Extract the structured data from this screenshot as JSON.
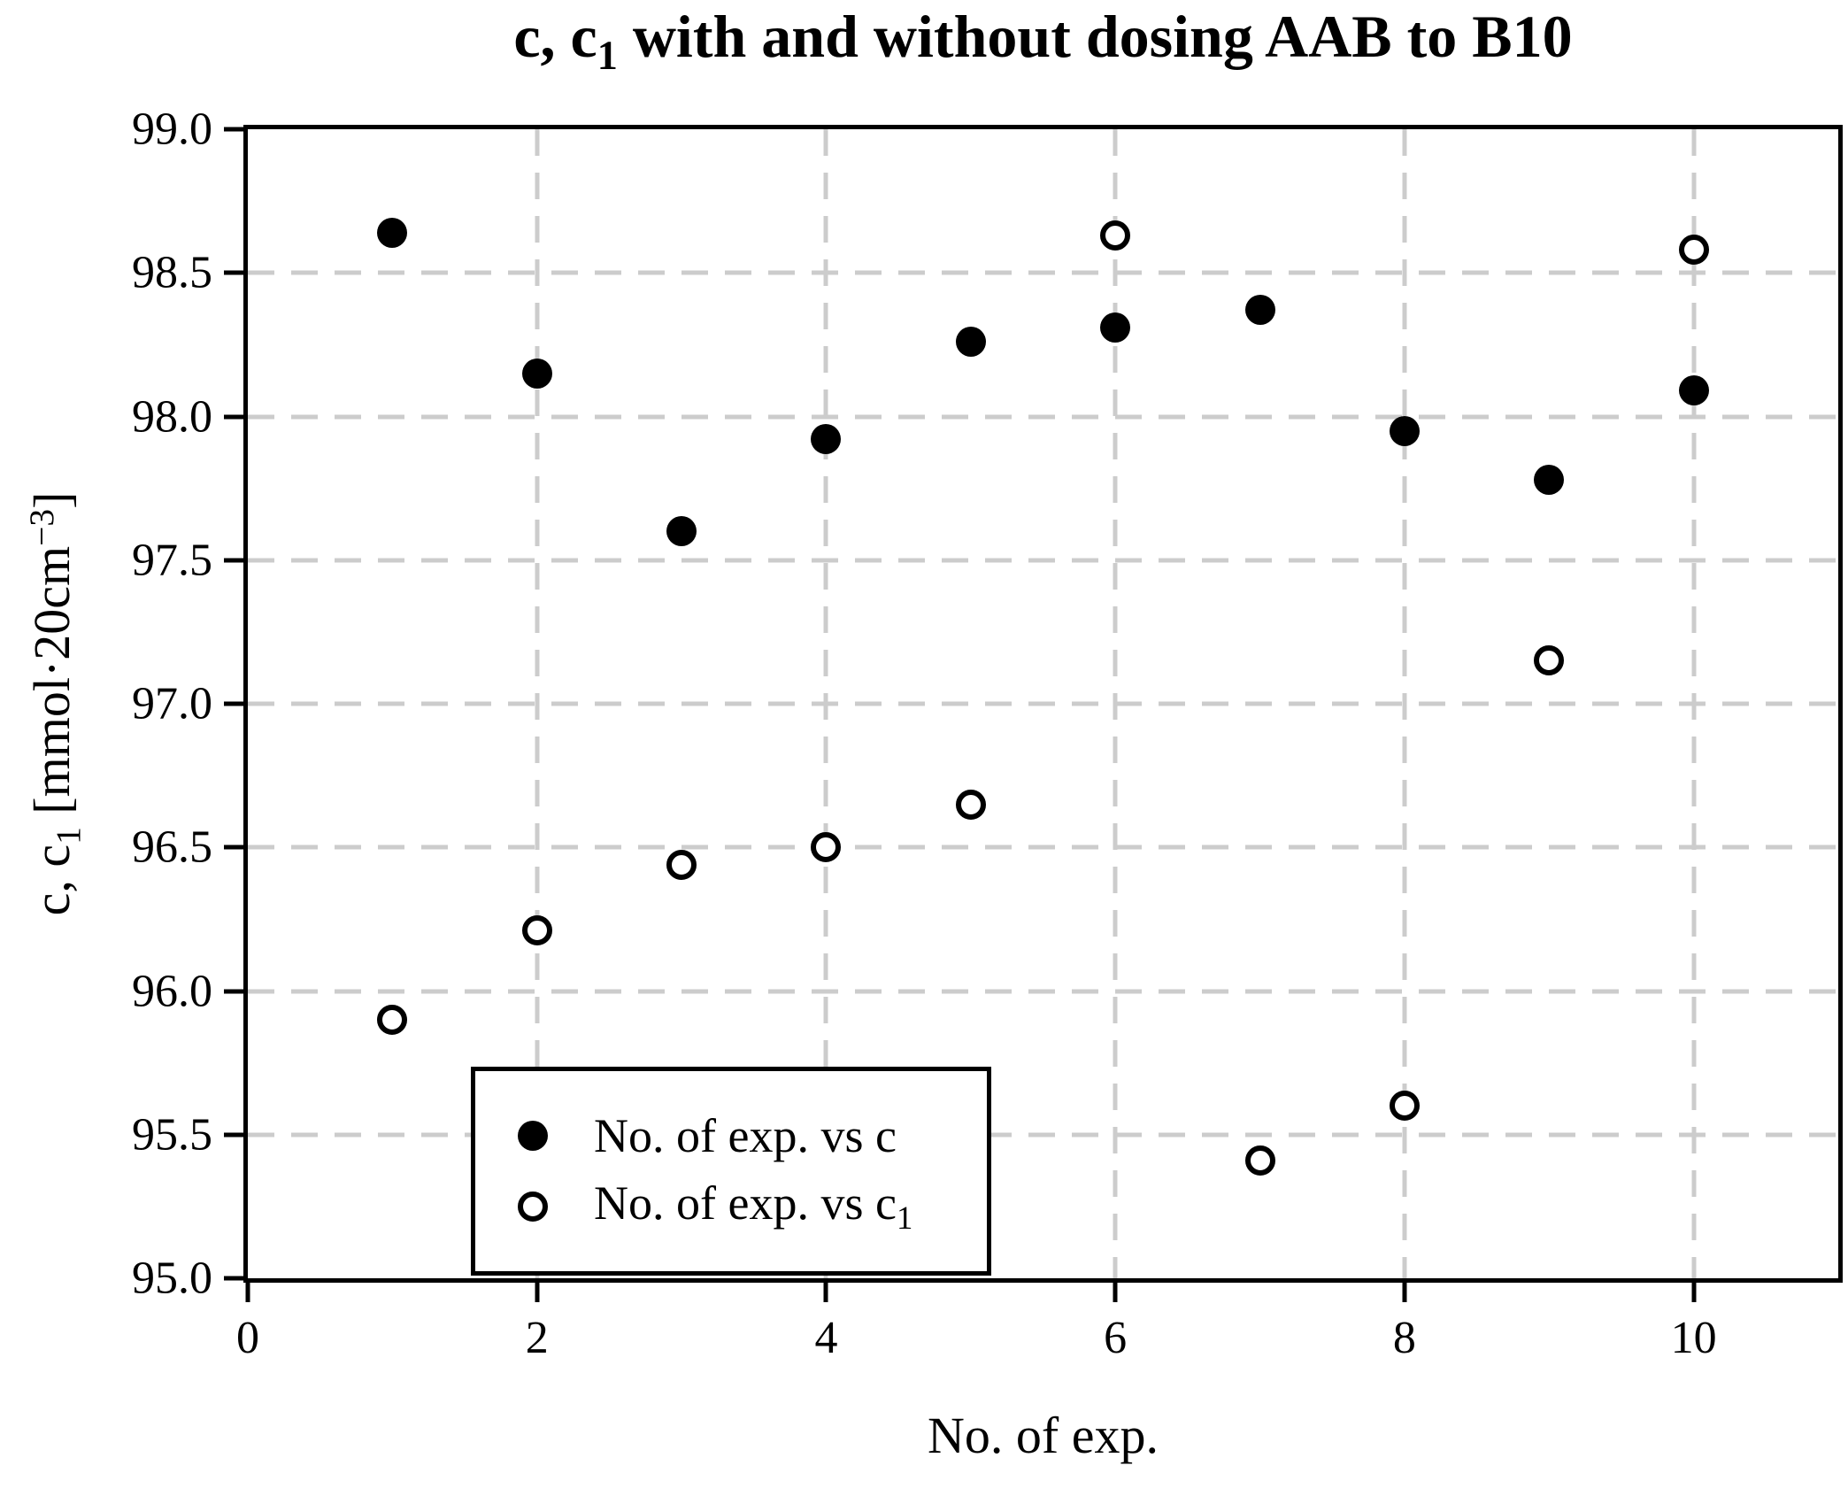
{
  "title": {
    "part1": "c, c",
    "sub": "1",
    "part2": " with and without dosing AAB to B10"
  },
  "axes": {
    "xlabel": "No. of exp.",
    "ylabel": {
      "part1": "c, c",
      "sub": "1",
      "part2": " [mmol·20cm",
      "sup": "−3",
      "part3": "]"
    }
  },
  "legend": {
    "item1_label": "No. of exp. vs c",
    "item2_label_part1": "No. of exp. vs c",
    "item2_label_sub": "1"
  },
  "chart_data": {
    "type": "scatter",
    "title": "c, c1 with and without dosing AAB to B10",
    "xlabel": "No. of exp.",
    "ylabel": "c, c1 [mmol·20cm^-3]",
    "xlim": [
      0,
      11
    ],
    "ylim": [
      95.0,
      99.0
    ],
    "x_ticks": [
      0,
      2,
      4,
      6,
      8,
      10
    ],
    "x_tick_labels": [
      "0",
      "2",
      "4",
      "6",
      "8",
      "10"
    ],
    "y_ticks": [
      95.0,
      95.5,
      96.0,
      96.5,
      97.0,
      97.5,
      98.0,
      98.5,
      99.0
    ],
    "y_tick_labels": [
      "95.0",
      "95.5",
      "96.0",
      "96.5",
      "97.0",
      "97.5",
      "98.0",
      "98.5",
      "99.0"
    ],
    "x_gridlines": [
      2,
      4,
      6,
      8,
      10
    ],
    "y_gridlines": [
      95.5,
      96.0,
      96.5,
      97.0,
      97.5,
      98.0,
      98.5
    ],
    "grid": "dashed",
    "grid_color": "#cccccc",
    "accent_color": "#000000",
    "legend_position": "lower left",
    "x": [
      1,
      2,
      3,
      4,
      5,
      6,
      7,
      8,
      9,
      10
    ],
    "series": [
      {
        "name": "No. of exp. vs c",
        "marker": "filled-circle",
        "values": [
          98.64,
          98.15,
          97.6,
          97.92,
          98.26,
          98.31,
          98.37,
          97.95,
          97.78,
          98.09
        ]
      },
      {
        "name": "No. of exp. vs c1",
        "marker": "open-circle",
        "values": [
          95.9,
          96.21,
          96.44,
          96.5,
          96.65,
          98.63,
          95.41,
          95.6,
          97.15,
          98.58
        ]
      }
    ]
  }
}
